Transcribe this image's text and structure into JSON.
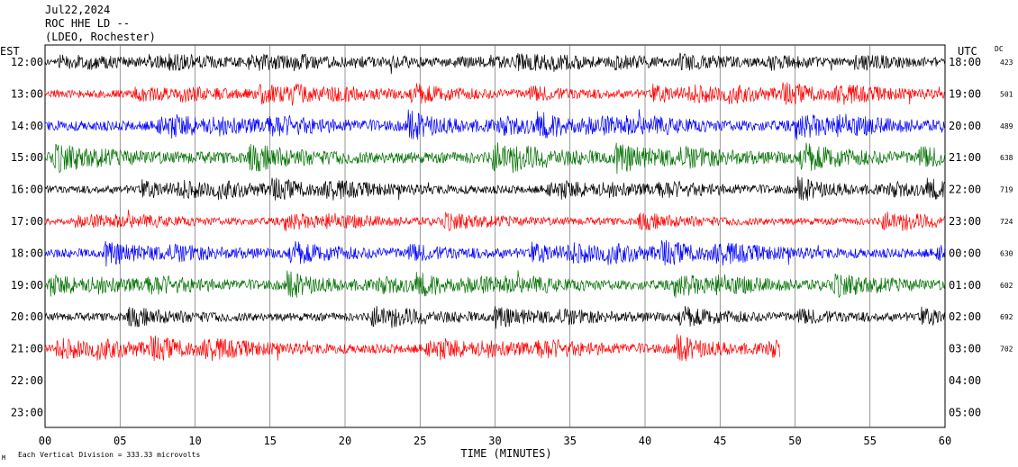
{
  "header": {
    "date": "Jul22,2024",
    "station": "ROC HHE LD --",
    "network": "(LDEO, Rochester)"
  },
  "left_axis_title": "EST",
  "right_axis_title": "UTC",
  "dc_title": "DC",
  "x_axis_title": "TIME (MINUTES)",
  "footnote_marker": "M",
  "footnote": "Each Vertical Division =  333.33 microvolts",
  "chart_data": {
    "type": "line",
    "title": "",
    "xlabel": "TIME (MINUTES)",
    "ylabel": "",
    "xlim": [
      0,
      60
    ],
    "x_ticks": [
      "00",
      "05",
      "10",
      "15",
      "20",
      "25",
      "30",
      "35",
      "40",
      "45",
      "50",
      "55",
      "60"
    ],
    "vertical_division_value": "333.33 microvolts",
    "rows": [
      {
        "est": "12:00",
        "utc": "18:00",
        "dc": "423",
        "color": "#000000",
        "amp": 7,
        "end": 60
      },
      {
        "est": "13:00",
        "utc": "19:00",
        "dc": "501",
        "color": "#ff0000",
        "amp": 8,
        "end": 60
      },
      {
        "est": "14:00",
        "utc": "20:00",
        "dc": "489",
        "color": "#0000ff",
        "amp": 10,
        "end": 60
      },
      {
        "est": "15:00",
        "utc": "21:00",
        "dc": "638",
        "color": "#007000",
        "amp": 11,
        "end": 60
      },
      {
        "est": "16:00",
        "utc": "22:00",
        "dc": "719",
        "color": "#000000",
        "amp": 8,
        "end": 60
      },
      {
        "est": "17:00",
        "utc": "23:00",
        "dc": "724",
        "color": "#ff0000",
        "amp": 7,
        "end": 60
      },
      {
        "est": "18:00",
        "utc": "00:00",
        "dc": "630",
        "color": "#0000ff",
        "amp": 9,
        "end": 60
      },
      {
        "est": "19:00",
        "utc": "01:00",
        "dc": "602",
        "color": "#007000",
        "amp": 9,
        "end": 60
      },
      {
        "est": "20:00",
        "utc": "02:00",
        "dc": "692",
        "color": "#000000",
        "amp": 8,
        "end": 60
      },
      {
        "est": "21:00",
        "utc": "03:00",
        "dc": "702",
        "color": "#ff0000",
        "amp": 9,
        "end": 49
      },
      {
        "est": "22:00",
        "utc": "04:00",
        "dc": "",
        "color": "#000000",
        "amp": 0,
        "end": 0
      },
      {
        "est": "23:00",
        "utc": "05:00",
        "dc": "",
        "color": "#000000",
        "amp": 0,
        "end": 0
      }
    ]
  }
}
